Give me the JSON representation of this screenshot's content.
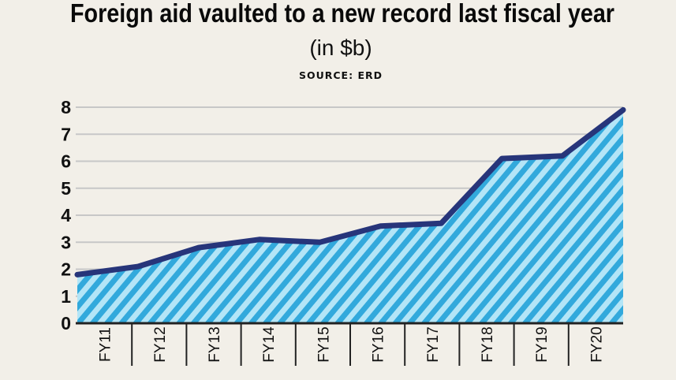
{
  "chart_data": {
    "type": "area",
    "title": "Foreign aid vaulted to a new record last fiscal year",
    "subtitle": "(in $b)",
    "source": "SOURCE: ERD",
    "categories": [
      "FY11",
      "FY12",
      "FY13",
      "FY14",
      "FY15",
      "FY16",
      "FY17",
      "FY18",
      "FY19",
      "FY20"
    ],
    "values": [
      1.8,
      2.1,
      2.8,
      3.1,
      3.0,
      3.6,
      3.7,
      6.1,
      6.2,
      7.9
    ],
    "yticks": [
      "0",
      "1",
      "2",
      "3",
      "4",
      "5",
      "6",
      "7",
      "8"
    ],
    "ylim": [
      0,
      8
    ],
    "grid": true,
    "colors": {
      "background": "#f2efe8",
      "fill_light": "#b3e5f7",
      "fill_stripe": "#32a9dc",
      "line": "#27357a",
      "grid": "#c7c7c7",
      "axis": "#222222"
    }
  }
}
